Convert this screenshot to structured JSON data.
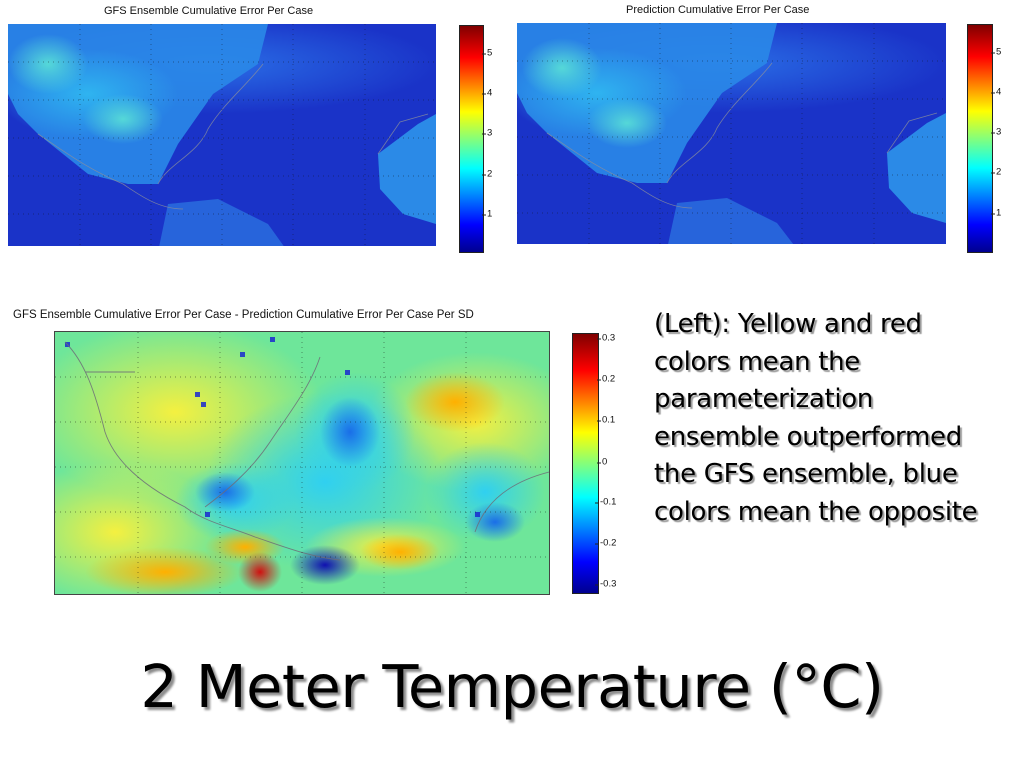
{
  "slide_title": "2 Meter Temperature (°C)",
  "caption_lines": [
    "(Left): Yellow and red",
    "colors mean the",
    "parameterization",
    "ensemble outperformed",
    "the GFS ensemble, blue",
    "colors mean the opposite"
  ],
  "colors": {
    "ocean_low": "#1530c8",
    "colormap": "jet"
  },
  "chart_data": [
    {
      "type": "heatmap",
      "title": "GFS Ensemble Cumulative Error Per Case",
      "colorbar": {
        "range": [
          0,
          5.7
        ],
        "ticks": [
          "5",
          "4",
          "3",
          "2",
          "1"
        ],
        "colormap": "jet"
      },
      "grid": true
    },
    {
      "type": "heatmap",
      "title": "Prediction Cumulative Error Per Case",
      "colorbar": {
        "range": [
          0,
          5.7
        ],
        "ticks": [
          "5",
          "4",
          "3",
          "2",
          "1"
        ],
        "colormap": "jet"
      },
      "grid": true
    },
    {
      "type": "heatmap",
      "title": "GFS Ensemble Cumulative Error Per Case - Prediction Cumulative Error Per Case Per SD",
      "colorbar": {
        "range": [
          -0.34,
          0.34
        ],
        "ticks": [
          "0.3",
          "0.2",
          "0.1",
          "0",
          "-0.1",
          "-0.2",
          "-0.3"
        ],
        "colormap": "jet"
      },
      "grid": true
    }
  ]
}
